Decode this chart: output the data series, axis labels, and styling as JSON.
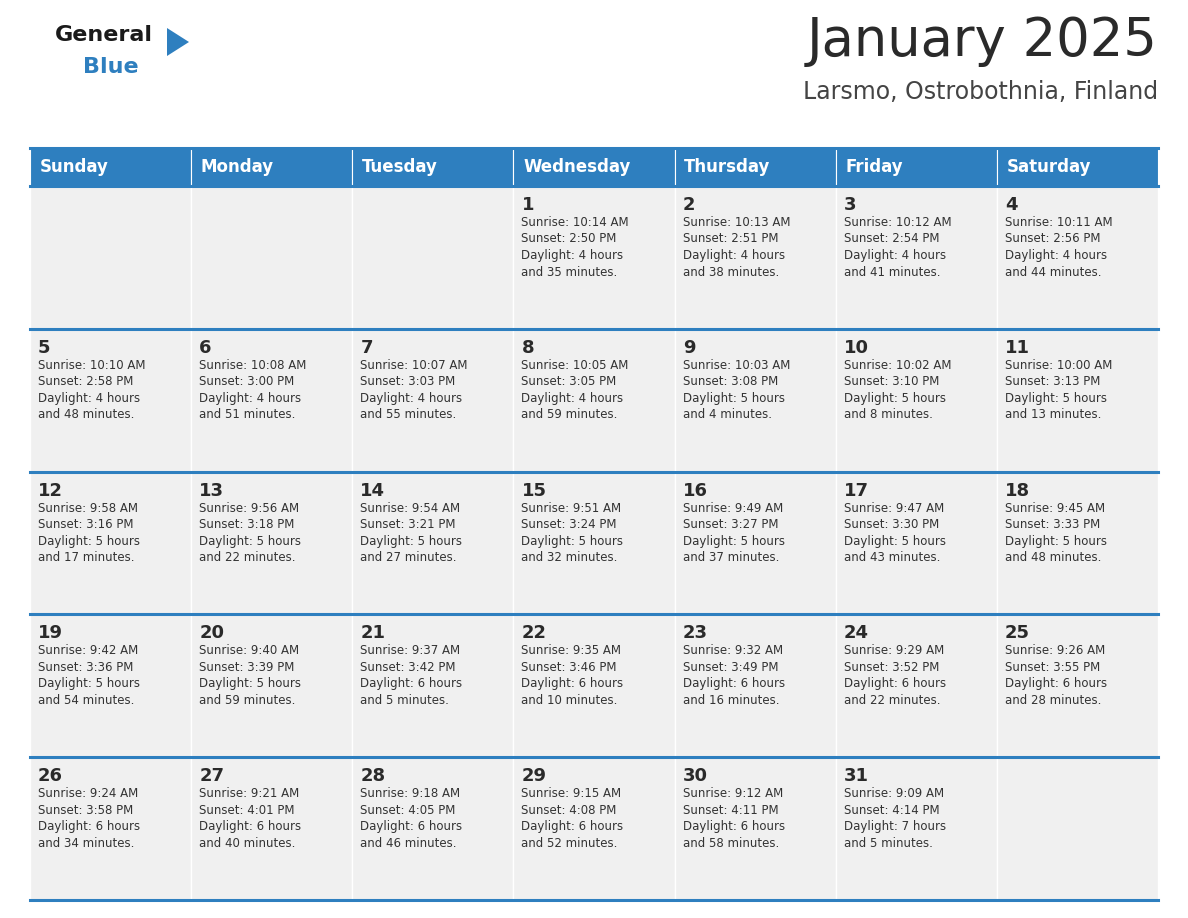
{
  "title": "January 2025",
  "subtitle": "Larsmo, Ostrobothnia, Finland",
  "days_header": [
    "Sunday",
    "Monday",
    "Tuesday",
    "Wednesday",
    "Thursday",
    "Friday",
    "Saturday"
  ],
  "header_bg": "#2E7FBF",
  "header_text_color": "#FFFFFF",
  "cell_bg_light": "#F0F0F0",
  "border_color": "#2E7FBF",
  "title_color": "#2a2a2a",
  "subtitle_color": "#444444",
  "day_number_color": "#2a2a2a",
  "cell_text_color": "#333333",
  "logo_general_color": "#1a1a1a",
  "logo_blue_color": "#2E7FBF",
  "weeks": [
    [
      {
        "day": null,
        "info": null
      },
      {
        "day": null,
        "info": null
      },
      {
        "day": null,
        "info": null
      },
      {
        "day": 1,
        "info": "Sunrise: 10:14 AM\nSunset: 2:50 PM\nDaylight: 4 hours\nand 35 minutes."
      },
      {
        "day": 2,
        "info": "Sunrise: 10:13 AM\nSunset: 2:51 PM\nDaylight: 4 hours\nand 38 minutes."
      },
      {
        "day": 3,
        "info": "Sunrise: 10:12 AM\nSunset: 2:54 PM\nDaylight: 4 hours\nand 41 minutes."
      },
      {
        "day": 4,
        "info": "Sunrise: 10:11 AM\nSunset: 2:56 PM\nDaylight: 4 hours\nand 44 minutes."
      }
    ],
    [
      {
        "day": 5,
        "info": "Sunrise: 10:10 AM\nSunset: 2:58 PM\nDaylight: 4 hours\nand 48 minutes."
      },
      {
        "day": 6,
        "info": "Sunrise: 10:08 AM\nSunset: 3:00 PM\nDaylight: 4 hours\nand 51 minutes."
      },
      {
        "day": 7,
        "info": "Sunrise: 10:07 AM\nSunset: 3:03 PM\nDaylight: 4 hours\nand 55 minutes."
      },
      {
        "day": 8,
        "info": "Sunrise: 10:05 AM\nSunset: 3:05 PM\nDaylight: 4 hours\nand 59 minutes."
      },
      {
        "day": 9,
        "info": "Sunrise: 10:03 AM\nSunset: 3:08 PM\nDaylight: 5 hours\nand 4 minutes."
      },
      {
        "day": 10,
        "info": "Sunrise: 10:02 AM\nSunset: 3:10 PM\nDaylight: 5 hours\nand 8 minutes."
      },
      {
        "day": 11,
        "info": "Sunrise: 10:00 AM\nSunset: 3:13 PM\nDaylight: 5 hours\nand 13 minutes."
      }
    ],
    [
      {
        "day": 12,
        "info": "Sunrise: 9:58 AM\nSunset: 3:16 PM\nDaylight: 5 hours\nand 17 minutes."
      },
      {
        "day": 13,
        "info": "Sunrise: 9:56 AM\nSunset: 3:18 PM\nDaylight: 5 hours\nand 22 minutes."
      },
      {
        "day": 14,
        "info": "Sunrise: 9:54 AM\nSunset: 3:21 PM\nDaylight: 5 hours\nand 27 minutes."
      },
      {
        "day": 15,
        "info": "Sunrise: 9:51 AM\nSunset: 3:24 PM\nDaylight: 5 hours\nand 32 minutes."
      },
      {
        "day": 16,
        "info": "Sunrise: 9:49 AM\nSunset: 3:27 PM\nDaylight: 5 hours\nand 37 minutes."
      },
      {
        "day": 17,
        "info": "Sunrise: 9:47 AM\nSunset: 3:30 PM\nDaylight: 5 hours\nand 43 minutes."
      },
      {
        "day": 18,
        "info": "Sunrise: 9:45 AM\nSunset: 3:33 PM\nDaylight: 5 hours\nand 48 minutes."
      }
    ],
    [
      {
        "day": 19,
        "info": "Sunrise: 9:42 AM\nSunset: 3:36 PM\nDaylight: 5 hours\nand 54 minutes."
      },
      {
        "day": 20,
        "info": "Sunrise: 9:40 AM\nSunset: 3:39 PM\nDaylight: 5 hours\nand 59 minutes."
      },
      {
        "day": 21,
        "info": "Sunrise: 9:37 AM\nSunset: 3:42 PM\nDaylight: 6 hours\nand 5 minutes."
      },
      {
        "day": 22,
        "info": "Sunrise: 9:35 AM\nSunset: 3:46 PM\nDaylight: 6 hours\nand 10 minutes."
      },
      {
        "day": 23,
        "info": "Sunrise: 9:32 AM\nSunset: 3:49 PM\nDaylight: 6 hours\nand 16 minutes."
      },
      {
        "day": 24,
        "info": "Sunrise: 9:29 AM\nSunset: 3:52 PM\nDaylight: 6 hours\nand 22 minutes."
      },
      {
        "day": 25,
        "info": "Sunrise: 9:26 AM\nSunset: 3:55 PM\nDaylight: 6 hours\nand 28 minutes."
      }
    ],
    [
      {
        "day": 26,
        "info": "Sunrise: 9:24 AM\nSunset: 3:58 PM\nDaylight: 6 hours\nand 34 minutes."
      },
      {
        "day": 27,
        "info": "Sunrise: 9:21 AM\nSunset: 4:01 PM\nDaylight: 6 hours\nand 40 minutes."
      },
      {
        "day": 28,
        "info": "Sunrise: 9:18 AM\nSunset: 4:05 PM\nDaylight: 6 hours\nand 46 minutes."
      },
      {
        "day": 29,
        "info": "Sunrise: 9:15 AM\nSunset: 4:08 PM\nDaylight: 6 hours\nand 52 minutes."
      },
      {
        "day": 30,
        "info": "Sunrise: 9:12 AM\nSunset: 4:11 PM\nDaylight: 6 hours\nand 58 minutes."
      },
      {
        "day": 31,
        "info": "Sunrise: 9:09 AM\nSunset: 4:14 PM\nDaylight: 7 hours\nand 5 minutes."
      },
      {
        "day": null,
        "info": null
      }
    ]
  ]
}
